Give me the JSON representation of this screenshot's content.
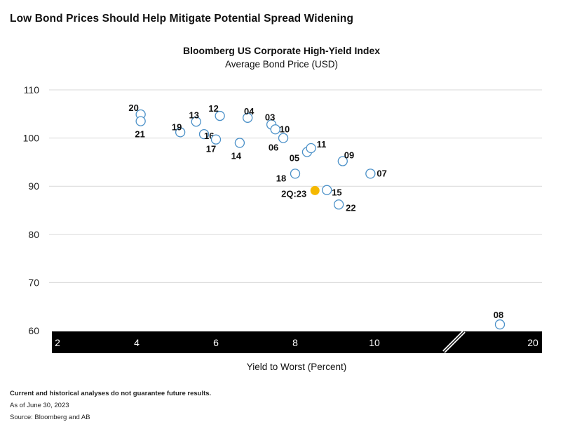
{
  "page": {
    "title": "Low Bond Prices Should Help Mitigate Potential Spread Widening",
    "xlabel": "Yield to Worst (Percent)",
    "notes": {
      "disclaimer": "Current and historical analyses do not guarantee future results.",
      "asof": "As of June 30, 2023",
      "source": "Source: Bloomberg and AB"
    }
  },
  "chart_data": {
    "type": "scatter",
    "title": "Bloomberg US Corporate High-Yield Index",
    "subtitle": "Average Bond Price (USD)",
    "xlabel": "Yield to Worst (Percent)",
    "ylabel": "",
    "xlim": [
      2,
      20
    ],
    "ylim": [
      60,
      110
    ],
    "x_ticks": [
      "2",
      "4",
      "6",
      "8",
      "10",
      "20"
    ],
    "y_ticks": [
      "60",
      "70",
      "80",
      "90",
      "100",
      "110"
    ],
    "axis_break": "between 10 and 20",
    "grid": "horizontal",
    "points": [
      {
        "label": "20",
        "x": 4.1,
        "y": 104.9
      },
      {
        "label": "21",
        "x": 4.1,
        "y": 103.5
      },
      {
        "label": "19",
        "x": 5.1,
        "y": 101.2
      },
      {
        "label": "13",
        "x": 5.5,
        "y": 103.4
      },
      {
        "label": "12",
        "x": 6.1,
        "y": 104.6
      },
      {
        "label": "16",
        "x": 5.7,
        "y": 100.8
      },
      {
        "label": "17",
        "x": 6.0,
        "y": 99.7
      },
      {
        "label": "14",
        "x": 6.6,
        "y": 99.0
      },
      {
        "label": "04",
        "x": 6.8,
        "y": 104.2
      },
      {
        "label": "03",
        "x": 7.4,
        "y": 102.8
      },
      {
        "label": "10",
        "x": 7.5,
        "y": 101.8
      },
      {
        "label": "06",
        "x": 7.7,
        "y": 100.0
      },
      {
        "label": "05",
        "x": 8.3,
        "y": 97.1
      },
      {
        "label": "11",
        "x": 8.4,
        "y": 97.9
      },
      {
        "label": "18",
        "x": 8.0,
        "y": 92.6
      },
      {
        "label": "09",
        "x": 9.2,
        "y": 95.2
      },
      {
        "label": "07",
        "x": 9.9,
        "y": 92.6
      },
      {
        "label": "15",
        "x": 8.8,
        "y": 89.2
      },
      {
        "label": "22",
        "x": 9.1,
        "y": 86.2
      },
      {
        "label": "08",
        "x": 19.3,
        "y": 61.3
      },
      {
        "label": "2Q:23",
        "x": 8.5,
        "y": 89.1,
        "highlight": true
      }
    ],
    "colors": {
      "marker": "#4a90c8",
      "highlight": "#f5b800",
      "axis_band": "#000000",
      "grid": "#d9d9d9"
    }
  }
}
